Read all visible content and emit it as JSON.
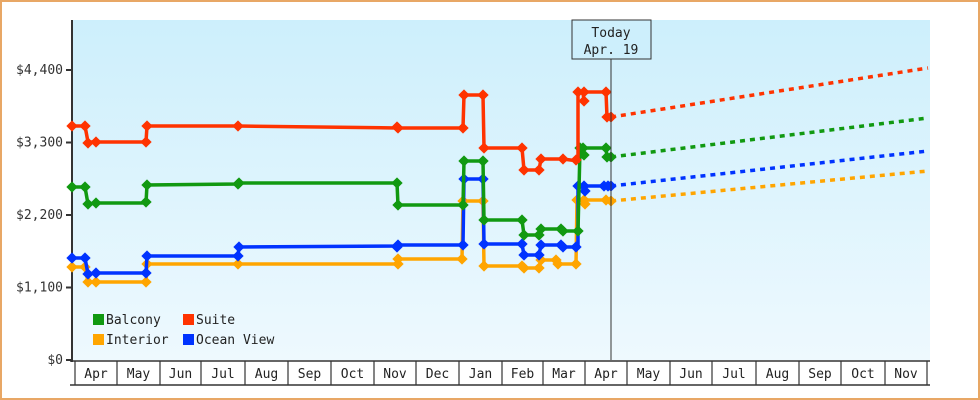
{
  "chart_data": {
    "type": "line",
    "title": "",
    "xlabel": "",
    "ylabel": "",
    "ylim": [
      0,
      4950
    ],
    "y_ticks": [
      "$0",
      "$1,100",
      "$2,200",
      "$3,300",
      "$4,400"
    ],
    "y_tick_values": [
      0,
      1100,
      2200,
      3300,
      4400
    ],
    "x_categories": [
      "Apr",
      "May",
      "Jun",
      "Jul",
      "Aug",
      "Sep",
      "Oct",
      "Nov",
      "Dec",
      "Jan",
      "Feb",
      "Mar",
      "Apr",
      "May",
      "Jun",
      "Jul",
      "Aug",
      "Sep",
      "Oct",
      "Nov"
    ],
    "today_marker": {
      "line1": "Today",
      "line2": "Apr. 19"
    },
    "grid": false,
    "legend_position": "bottom-left inside",
    "legend": [
      {
        "name": "Balcony",
        "color": "#119911"
      },
      {
        "name": "Suite",
        "color": "#ff3300"
      },
      {
        "name": "Interior",
        "color": "#ffa500"
      },
      {
        "name": "Ocean View",
        "color": "#0033ff"
      }
    ],
    "series": [
      {
        "name": "Suite",
        "color": "#ff3300",
        "history_approx": [
          [
            "Apr",
            3550
          ],
          [
            "Apr",
            3550
          ],
          [
            "Apr",
            3300
          ],
          [
            "May",
            3300
          ],
          [
            "May",
            3580
          ],
          [
            "Jul",
            3570
          ],
          [
            "Nov",
            3540
          ],
          [
            "Jan",
            3540
          ],
          [
            "Jan",
            4100
          ],
          [
            "Jan",
            4100
          ],
          [
            "Jan",
            3260
          ],
          [
            "Feb",
            3260
          ],
          [
            "Feb",
            2900
          ],
          [
            "Feb",
            2900
          ],
          [
            "Feb",
            3060
          ],
          [
            "Mar",
            3060
          ],
          [
            "Mar",
            3000
          ],
          [
            "Mar",
            4150
          ],
          [
            "Apr",
            4150
          ],
          [
            "Apr",
            3720
          ]
        ],
        "forecast_end_value": 4400
      },
      {
        "name": "Balcony",
        "color": "#119911",
        "history_approx": [
          [
            "Apr",
            2640
          ],
          [
            "Apr",
            2640
          ],
          [
            "Apr",
            2360
          ],
          [
            "May",
            2360
          ],
          [
            "May",
            2660
          ],
          [
            "Jul",
            2680
          ],
          [
            "Nov",
            2680
          ],
          [
            "Nov",
            2340
          ],
          [
            "Jan",
            2340
          ],
          [
            "Jan",
            3030
          ],
          [
            "Jan",
            3030
          ],
          [
            "Jan",
            2100
          ],
          [
            "Feb",
            2100
          ],
          [
            "Feb",
            1890
          ],
          [
            "Feb",
            1890
          ],
          [
            "Feb",
            1980
          ],
          [
            "Mar",
            1980
          ],
          [
            "Mar",
            1950
          ],
          [
            "Mar",
            3260
          ],
          [
            "Apr",
            3260
          ],
          [
            "Apr",
            3080
          ]
        ],
        "forecast_end_value": 3700
      },
      {
        "name": "Ocean View",
        "color": "#0033ff",
        "history_approx": [
          [
            "Apr",
            1590
          ],
          [
            "Apr",
            1590
          ],
          [
            "Apr",
            1330
          ],
          [
            "May",
            1330
          ],
          [
            "May",
            1610
          ],
          [
            "Jul",
            1610
          ],
          [
            "Jul",
            1730
          ],
          [
            "Nov",
            1750
          ],
          [
            "Jan",
            1750
          ],
          [
            "Jan",
            2750
          ],
          [
            "Jan",
            2750
          ],
          [
            "Jan",
            1770
          ],
          [
            "Feb",
            1770
          ],
          [
            "Feb",
            1610
          ],
          [
            "Feb",
            1610
          ],
          [
            "Feb",
            1750
          ],
          [
            "Mar",
            1750
          ],
          [
            "Mar",
            1720
          ],
          [
            "Mar",
            2650
          ],
          [
            "Apr",
            2650
          ],
          [
            "Apr",
            2650
          ]
        ],
        "forecast_end_value": 3200
      },
      {
        "name": "Interior",
        "color": "#ffa500",
        "history_approx": [
          [
            "Apr",
            1420
          ],
          [
            "Apr",
            1420
          ],
          [
            "Apr",
            1170
          ],
          [
            "May",
            1170
          ],
          [
            "May",
            1460
          ],
          [
            "Jul",
            1460
          ],
          [
            "Nov",
            1470
          ],
          [
            "Jan",
            1560
          ],
          [
            "Jan",
            2400
          ],
          [
            "Jan",
            2400
          ],
          [
            "Jan",
            1430
          ],
          [
            "Feb",
            1430
          ],
          [
            "Feb",
            1410
          ],
          [
            "Feb",
            1410
          ],
          [
            "Feb",
            1540
          ],
          [
            "Mar",
            1480
          ],
          [
            "Mar",
            1460
          ],
          [
            "Mar",
            2400
          ],
          [
            "Apr",
            2400
          ],
          [
            "Apr",
            2400
          ]
        ],
        "forecast_end_value": 2880
      }
    ]
  }
}
